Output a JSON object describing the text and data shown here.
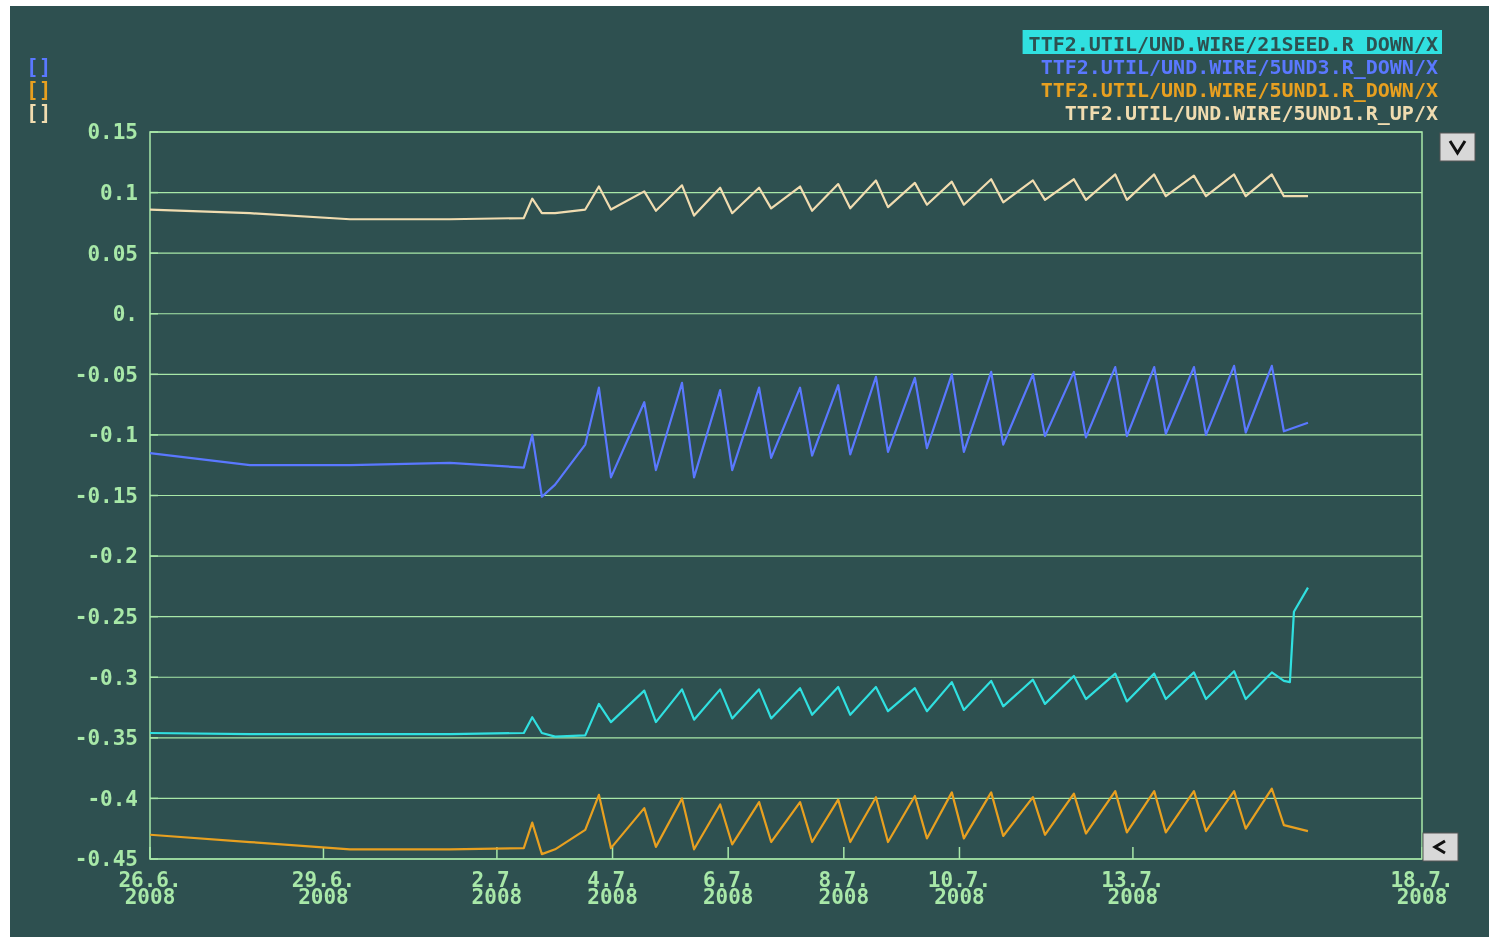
{
  "chart_data": {
    "type": "line",
    "legend": "top right",
    "grid": "y",
    "xlim": [
      "2008-06-26",
      "2008-07-18"
    ],
    "xticks": [
      {
        "value": "2008-06-26",
        "label": "26.6.\n2008"
      },
      {
        "value": "2008-06-29",
        "label": "29.6.\n2008"
      },
      {
        "value": "2008-07-02",
        "label": "2.7.\n2008"
      },
      {
        "value": "2008-07-04",
        "label": "4.7.\n2008"
      },
      {
        "value": "2008-07-06",
        "label": "6.7.\n2008"
      },
      {
        "value": "2008-07-08",
        "label": "8.7.\n2008"
      },
      {
        "value": "2008-07-10",
        "label": "10.7.\n2008"
      },
      {
        "value": "2008-07-13",
        "label": "13.7.\n2008"
      },
      {
        "value": "2008-07-18",
        "label": "18.7.\n2008"
      }
    ],
    "ylim": [
      -0.45,
      0.15
    ],
    "yticks": [
      0.15,
      0.1,
      0.05,
      {
        "value": 0,
        "label": "0."
      },
      -0.05,
      -0.1,
      -0.15,
      -0.2,
      -0.25,
      -0.3,
      -0.35,
      -0.4,
      -0.45
    ],
    "annotations": [
      "[]",
      "[]",
      "[]"
    ],
    "x": [
      "2008-06-26T00:00",
      "2008-06-27T17:30",
      "2008-06-29T11:00",
      "2008-07-01T04:30",
      "2008-07-02T11:10",
      "2008-07-02T14:40",
      "2008-07-02T18:40",
      "2008-07-03T00:10",
      "2008-07-03T12:40",
      "2008-07-03T18:20",
      "2008-07-03T23:20",
      "2008-07-04T13:10",
      "2008-07-04T18:00",
      "2008-07-05T04:50",
      "2008-07-05T09:50",
      "2008-07-05T20:40",
      "2008-07-06T01:40",
      "2008-07-06T12:50",
      "2008-07-06T17:50",
      "2008-07-07T05:50",
      "2008-07-07T10:50",
      "2008-07-07T21:40",
      "2008-07-08T02:40",
      "2008-07-08T13:20",
      "2008-07-08T18:20",
      "2008-07-09T05:30",
      "2008-07-09T10:30",
      "2008-07-09T20:50",
      "2008-07-10T01:50",
      "2008-07-10T13:10",
      "2008-07-10T18:10",
      "2008-07-11T06:30",
      "2008-07-11T11:30",
      "2008-07-11T23:30",
      "2008-07-12T04:30",
      "2008-07-12T16:40",
      "2008-07-12T21:30",
      "2008-07-13T08:50",
      "2008-07-13T13:40",
      "2008-07-14T01:20",
      "2008-07-14T06:20",
      "2008-07-14T18:00",
      "2008-07-14T22:50",
      "2008-07-15T09:40",
      "2008-07-15T14:40",
      "2008-07-16T00:40"
    ],
    "series": [
      {
        "name": "TTF2.UTIL/UND.WIRE/21SEED.R_DOWN/X",
        "color": "#30e0e0",
        "x": [
          "2008-06-26T00:00",
          "2008-06-27T17:30",
          "2008-06-29T11:00",
          "2008-07-01T04:30",
          "2008-07-02T11:10",
          "2008-07-02T14:40",
          "2008-07-02T18:40",
          "2008-07-03T00:10",
          "2008-07-03T12:40",
          "2008-07-03T18:20",
          "2008-07-03T23:20",
          "2008-07-04T13:10",
          "2008-07-04T18:00",
          "2008-07-05T04:50",
          "2008-07-05T09:50",
          "2008-07-05T20:40",
          "2008-07-06T01:40",
          "2008-07-06T12:50",
          "2008-07-06T17:50",
          "2008-07-07T05:50",
          "2008-07-07T10:50",
          "2008-07-07T21:40",
          "2008-07-08T02:40",
          "2008-07-08T13:20",
          "2008-07-08T18:20",
          "2008-07-09T05:30",
          "2008-07-09T10:30",
          "2008-07-09T20:50",
          "2008-07-10T01:50",
          "2008-07-10T13:10",
          "2008-07-10T18:10",
          "2008-07-11T06:30",
          "2008-07-11T11:30",
          "2008-07-11T23:30",
          "2008-07-12T04:30",
          "2008-07-12T16:40",
          "2008-07-12T21:30",
          "2008-07-13T08:50",
          "2008-07-13T13:40",
          "2008-07-14T01:20",
          "2008-07-14T06:20",
          "2008-07-14T18:00",
          "2008-07-14T22:50",
          "2008-07-15T09:40",
          "2008-07-15T14:40",
          "2008-07-15T17:10",
          "2008-07-15T18:50",
          "2008-07-16T00:40"
        ],
        "values": [
          -0.346,
          -0.347,
          -0.347,
          -0.347,
          -0.346,
          -0.333,
          -0.346,
          -0.349,
          -0.348,
          -0.322,
          -0.337,
          -0.311,
          -0.337,
          -0.31,
          -0.335,
          -0.31,
          -0.334,
          -0.31,
          -0.334,
          -0.309,
          -0.331,
          -0.308,
          -0.331,
          -0.308,
          -0.328,
          -0.309,
          -0.328,
          -0.304,
          -0.327,
          -0.303,
          -0.324,
          -0.302,
          -0.322,
          -0.299,
          -0.318,
          -0.297,
          -0.32,
          -0.297,
          -0.318,
          -0.296,
          -0.318,
          -0.295,
          -0.318,
          -0.296,
          -0.303,
          -0.304,
          -0.246,
          -0.226
        ]
      },
      {
        "name": "TTF2.UTIL/UND.WIRE/5UND3.R_DOWN/X",
        "color": "#5a78ff",
        "values": [
          -0.115,
          -0.125,
          -0.125,
          -0.123,
          -0.127,
          -0.1,
          -0.151,
          -0.141,
          -0.108,
          -0.061,
          -0.135,
          -0.073,
          -0.129,
          -0.057,
          -0.135,
          -0.063,
          -0.129,
          -0.061,
          -0.119,
          -0.061,
          -0.117,
          -0.059,
          -0.116,
          -0.052,
          -0.114,
          -0.053,
          -0.111,
          -0.05,
          -0.114,
          -0.048,
          -0.108,
          -0.05,
          -0.101,
          -0.048,
          -0.102,
          -0.044,
          -0.101,
          -0.044,
          -0.099,
          -0.044,
          -0.1,
          -0.043,
          -0.098,
          -0.043,
          -0.097,
          -0.09
        ]
      },
      {
        "name": "TTF2.UTIL/UND.WIRE/5UND1.R_DOWN/X",
        "color": "#e8a020",
        "values": [
          -0.43,
          -0.436,
          -0.442,
          -0.442,
          -0.441,
          -0.42,
          -0.446,
          -0.442,
          -0.426,
          -0.397,
          -0.441,
          -0.408,
          -0.44,
          -0.4,
          -0.442,
          -0.405,
          -0.438,
          -0.403,
          -0.436,
          -0.403,
          -0.436,
          -0.401,
          -0.436,
          -0.399,
          -0.436,
          -0.398,
          -0.433,
          -0.395,
          -0.433,
          -0.395,
          -0.431,
          -0.399,
          -0.43,
          -0.396,
          -0.429,
          -0.394,
          -0.428,
          -0.394,
          -0.428,
          -0.394,
          -0.427,
          -0.394,
          -0.425,
          -0.392,
          -0.422,
          -0.427
        ]
      },
      {
        "name": "TTF2.UTIL/UND.WIRE/5UND1.R_UP/X",
        "color": "#f0dcb0",
        "values": [
          0.086,
          0.083,
          0.078,
          0.078,
          0.079,
          0.095,
          0.083,
          0.083,
          0.086,
          0.105,
          0.086,
          0.101,
          0.085,
          0.106,
          0.081,
          0.104,
          0.083,
          0.104,
          0.087,
          0.105,
          0.085,
          0.107,
          0.087,
          0.11,
          0.088,
          0.108,
          0.09,
          0.109,
          0.09,
          0.111,
          0.092,
          0.11,
          0.094,
          0.111,
          0.094,
          0.115,
          0.094,
          0.115,
          0.097,
          0.114,
          0.097,
          0.115,
          0.097,
          0.115,
          0.097,
          0.097
        ]
      }
    ]
  }
}
